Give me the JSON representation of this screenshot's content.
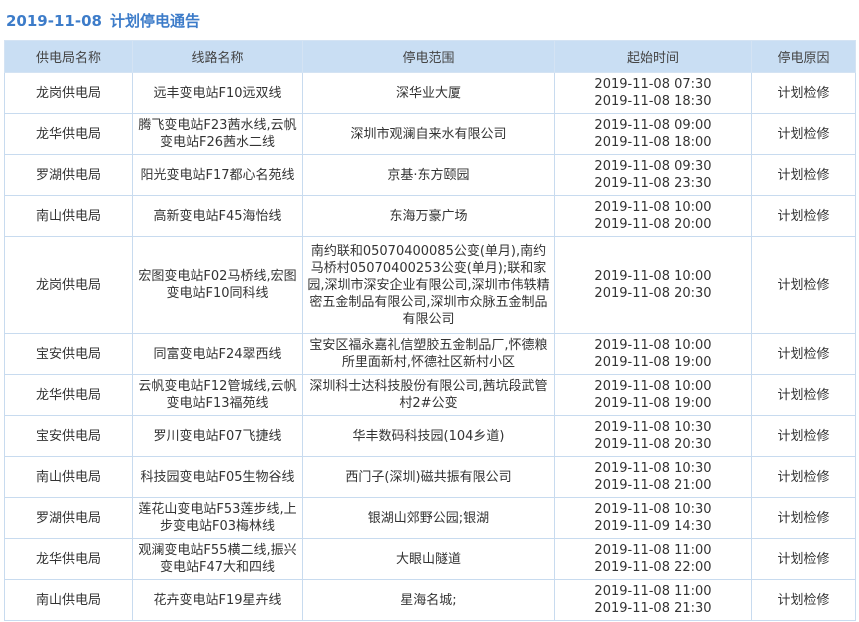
{
  "title": {
    "date": "2019-11-08",
    "text": "计划停电通告"
  },
  "table": {
    "headers": [
      "供电局名称",
      "线路名称",
      "停电范围",
      "起始时间",
      "停电原因"
    ],
    "rows": [
      [
        "龙岗供电局",
        "远丰变电站F10远双线",
        "深华业大厦",
        [
          "2019-11-08 07:30",
          "2019-11-08 18:30"
        ],
        "计划检修"
      ],
      [
        "龙华供电局",
        "腾飞变电站F23茜水线,云帆变电站F26茜水二线",
        "深圳市观澜自来水有限公司",
        [
          "2019-11-08 09:00",
          "2019-11-08 18:00"
        ],
        "计划检修"
      ],
      [
        "罗湖供电局",
        "阳光变电站F17都心名苑线",
        "京基·东方颐园",
        [
          "2019-11-08 09:30",
          "2019-11-08 23:30"
        ],
        "计划检修"
      ],
      [
        "南山供电局",
        "高新变电站F45海怡线",
        "东海万豪广场",
        [
          "2019-11-08 10:00",
          "2019-11-08 20:00"
        ],
        "计划检修"
      ],
      [
        "龙岗供电局",
        "宏图变电站F02马桥线,宏图变电站F10同科线",
        "南约联和05070400085公变(单月),南约马桥村05070400253公变(单月);联和家园,深圳市深安企业有限公司,深圳市伟轶精密五金制品有限公司,深圳市众脉五金制品有限公司",
        [
          "2019-11-08 10:00",
          "2019-11-08 20:30"
        ],
        "计划检修"
      ],
      [
        "宝安供电局",
        "同富变电站F24翠西线",
        "宝安区福永嘉礼信塑胶五金制品厂,怀德粮所里面新村,怀德社区新村小区",
        [
          "2019-11-08 10:00",
          "2019-11-08 19:00"
        ],
        "计划检修"
      ],
      [
        "龙华供电局",
        "云帆变电站F12管城线,云帆变电站F13福苑线",
        "深圳科士达科技股份有限公司,茜坑段武管村2#公变",
        [
          "2019-11-08 10:00",
          "2019-11-08 19:00"
        ],
        "计划检修"
      ],
      [
        "宝安供电局",
        "罗川变电站F07飞捷线",
        "华丰数码科技园(104乡道)",
        [
          "2019-11-08 10:30",
          "2019-11-08 20:30"
        ],
        "计划检修"
      ],
      [
        "南山供电局",
        "科技园变电站F05生物谷线",
        "西门子(深圳)磁共振有限公司",
        [
          "2019-11-08 10:30",
          "2019-11-08 21:00"
        ],
        "计划检修"
      ],
      [
        "罗湖供电局",
        "莲花山变电站F53莲步线,上步变电站F03梅林线",
        "银湖山郊野公园;银湖",
        [
          "2019-11-08 10:30",
          "2019-11-09 14:30"
        ],
        "计划检修"
      ],
      [
        "龙华供电局",
        "观澜变电站F55横二线,振兴变电站F47大和四线",
        "大眼山隧道",
        [
          "2019-11-08 11:00",
          "2019-11-08 22:00"
        ],
        "计划检修"
      ],
      [
        "南山供电局",
        "花卉变电站F19星卉线",
        "星海名城;",
        [
          "2019-11-08 11:00",
          "2019-11-08 21:30"
        ],
        "计划检修"
      ]
    ]
  }
}
